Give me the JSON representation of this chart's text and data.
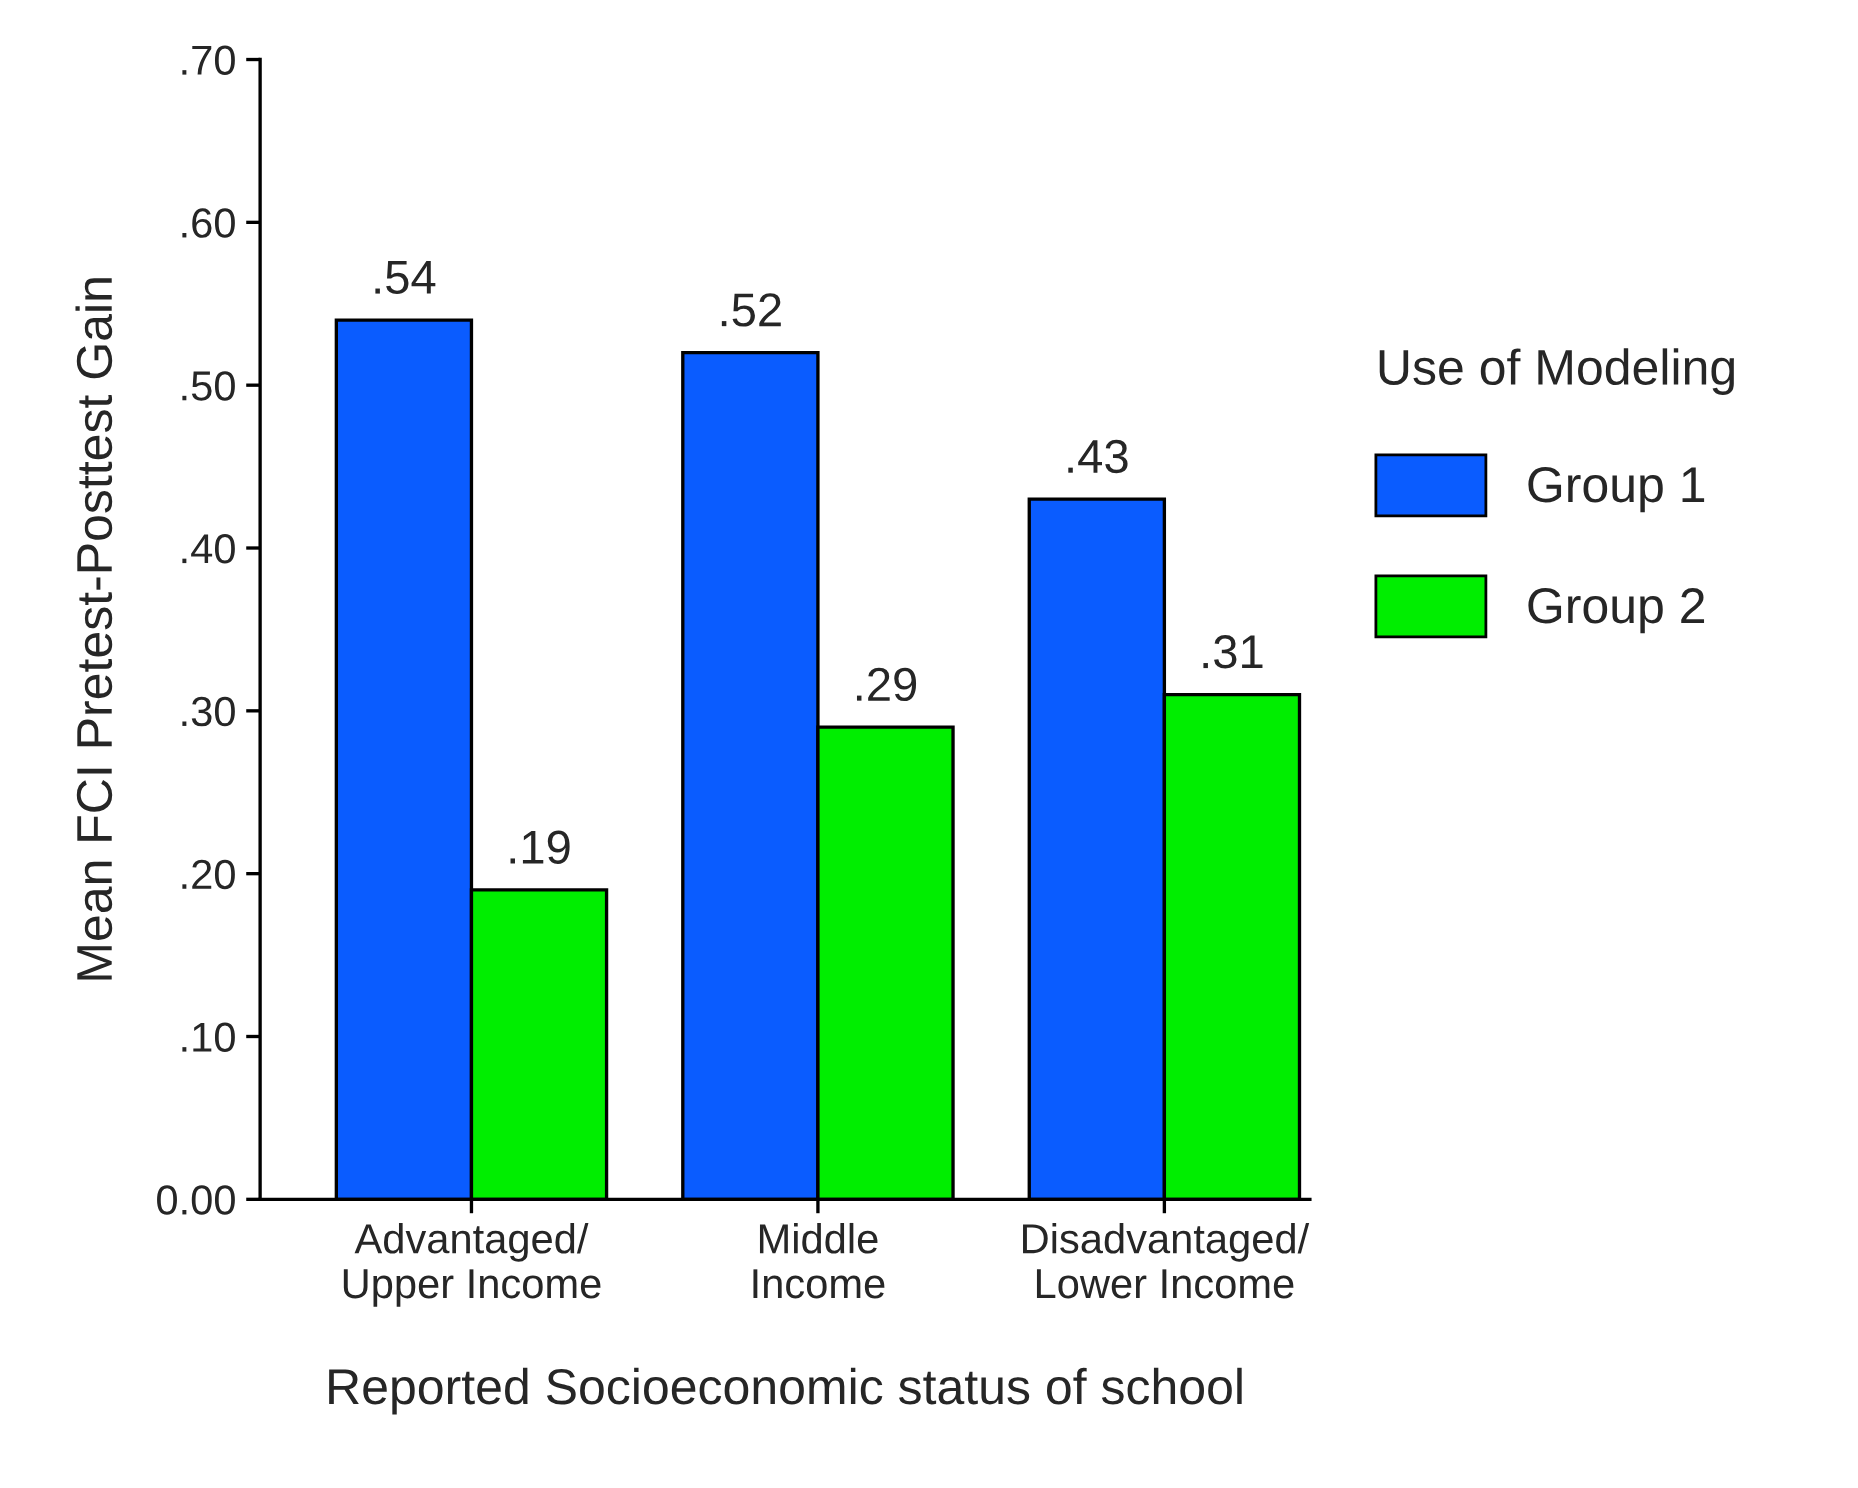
{
  "chart_data": {
    "type": "bar",
    "xlabel": "Reported Socioeconomic status of school",
    "ylabel": "Mean FCI Pretest-Posttest Gain",
    "legend_title": "Use of Modeling",
    "categories": [
      "Advantaged/\nUpper Income",
      "Middle\nIncome",
      "Disadvantaged/\nLower Income"
    ],
    "series": [
      {
        "name": "Group 1",
        "color": "#0a5cff",
        "values": [
          0.54,
          0.52,
          0.43
        ],
        "value_labels": [
          ".54",
          ".52",
          ".43"
        ]
      },
      {
        "name": "Group 2",
        "color": "#00ee00",
        "values": [
          0.19,
          0.29,
          0.31
        ],
        "value_labels": [
          ".19",
          ".29",
          ".31"
        ]
      }
    ],
    "ylim": [
      0,
      0.7
    ],
    "yticks": [
      {
        "value": 0,
        "label": "0.00"
      },
      {
        "value": 0.1,
        "label": ".10"
      },
      {
        "value": 0.2,
        "label": ".20"
      },
      {
        "value": 0.3,
        "label": ".30"
      },
      {
        "value": 0.4,
        "label": ".40"
      },
      {
        "value": 0.5,
        "label": ".50"
      },
      {
        "value": 0.6,
        "label": ".60"
      },
      {
        "value": 0.7,
        "label": ".70"
      }
    ],
    "grid": false,
    "legend": "right"
  }
}
